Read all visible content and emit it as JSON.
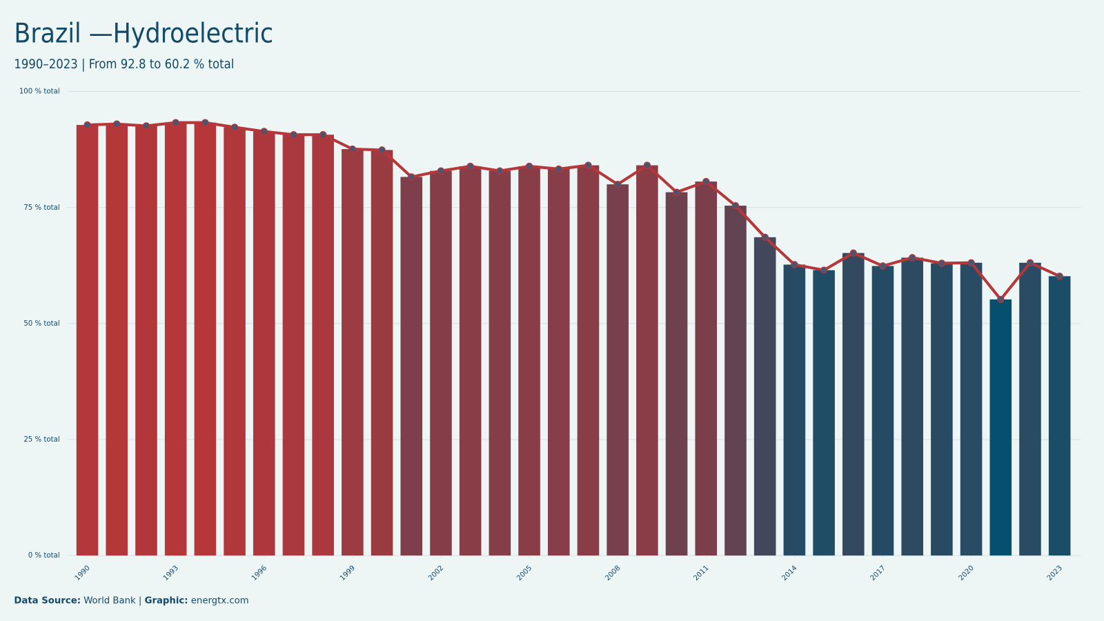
{
  "chart_data": {
    "type": "bar-line",
    "title": "Brazil —Hydroelectric",
    "subtitle": "1990–2023 | From 92.8 to 60.2 % total",
    "x": [
      1990,
      1991,
      1992,
      1993,
      1994,
      1995,
      1996,
      1997,
      1998,
      1999,
      2000,
      2001,
      2002,
      2003,
      2004,
      2005,
      2006,
      2007,
      2008,
      2009,
      2010,
      2011,
      2012,
      2013,
      2014,
      2015,
      2016,
      2017,
      2018,
      2019,
      2020,
      2021,
      2022,
      2023
    ],
    "values": [
      92.8,
      93.0,
      92.6,
      93.3,
      93.3,
      92.3,
      91.4,
      90.7,
      90.7,
      87.6,
      87.4,
      81.6,
      82.9,
      83.9,
      82.9,
      83.9,
      83.3,
      84.1,
      80.0,
      84.1,
      78.3,
      80.6,
      75.4,
      68.6,
      62.7,
      61.5,
      65.2,
      62.4,
      64.2,
      63.0,
      63.1,
      55.2,
      63.1,
      60.2
    ],
    "xlim": [
      1989.6,
      2023.4
    ],
    "xticks": [
      1990,
      1993,
      1996,
      1999,
      2002,
      2005,
      2008,
      2011,
      2014,
      2017,
      2020,
      2023
    ],
    "ylim": [
      0,
      100
    ],
    "yticks": [
      {
        "value": 0,
        "label": "0 % total"
      },
      {
        "value": 25,
        "label": "25 % total"
      },
      {
        "value": 50,
        "label": "50 % total"
      },
      {
        "value": 75,
        "label": "75 % total"
      },
      {
        "value": 100,
        "label": "100 % total"
      }
    ],
    "grid": true,
    "bar_color_high": "#b5373a",
    "bar_color_low": "#04506e",
    "line_color": "#b5373a",
    "marker_color": "#4a5570",
    "source_label": "Data Source:",
    "source": "World Bank",
    "graphic_label": "Graphic:",
    "graphic": "energtx.com"
  }
}
